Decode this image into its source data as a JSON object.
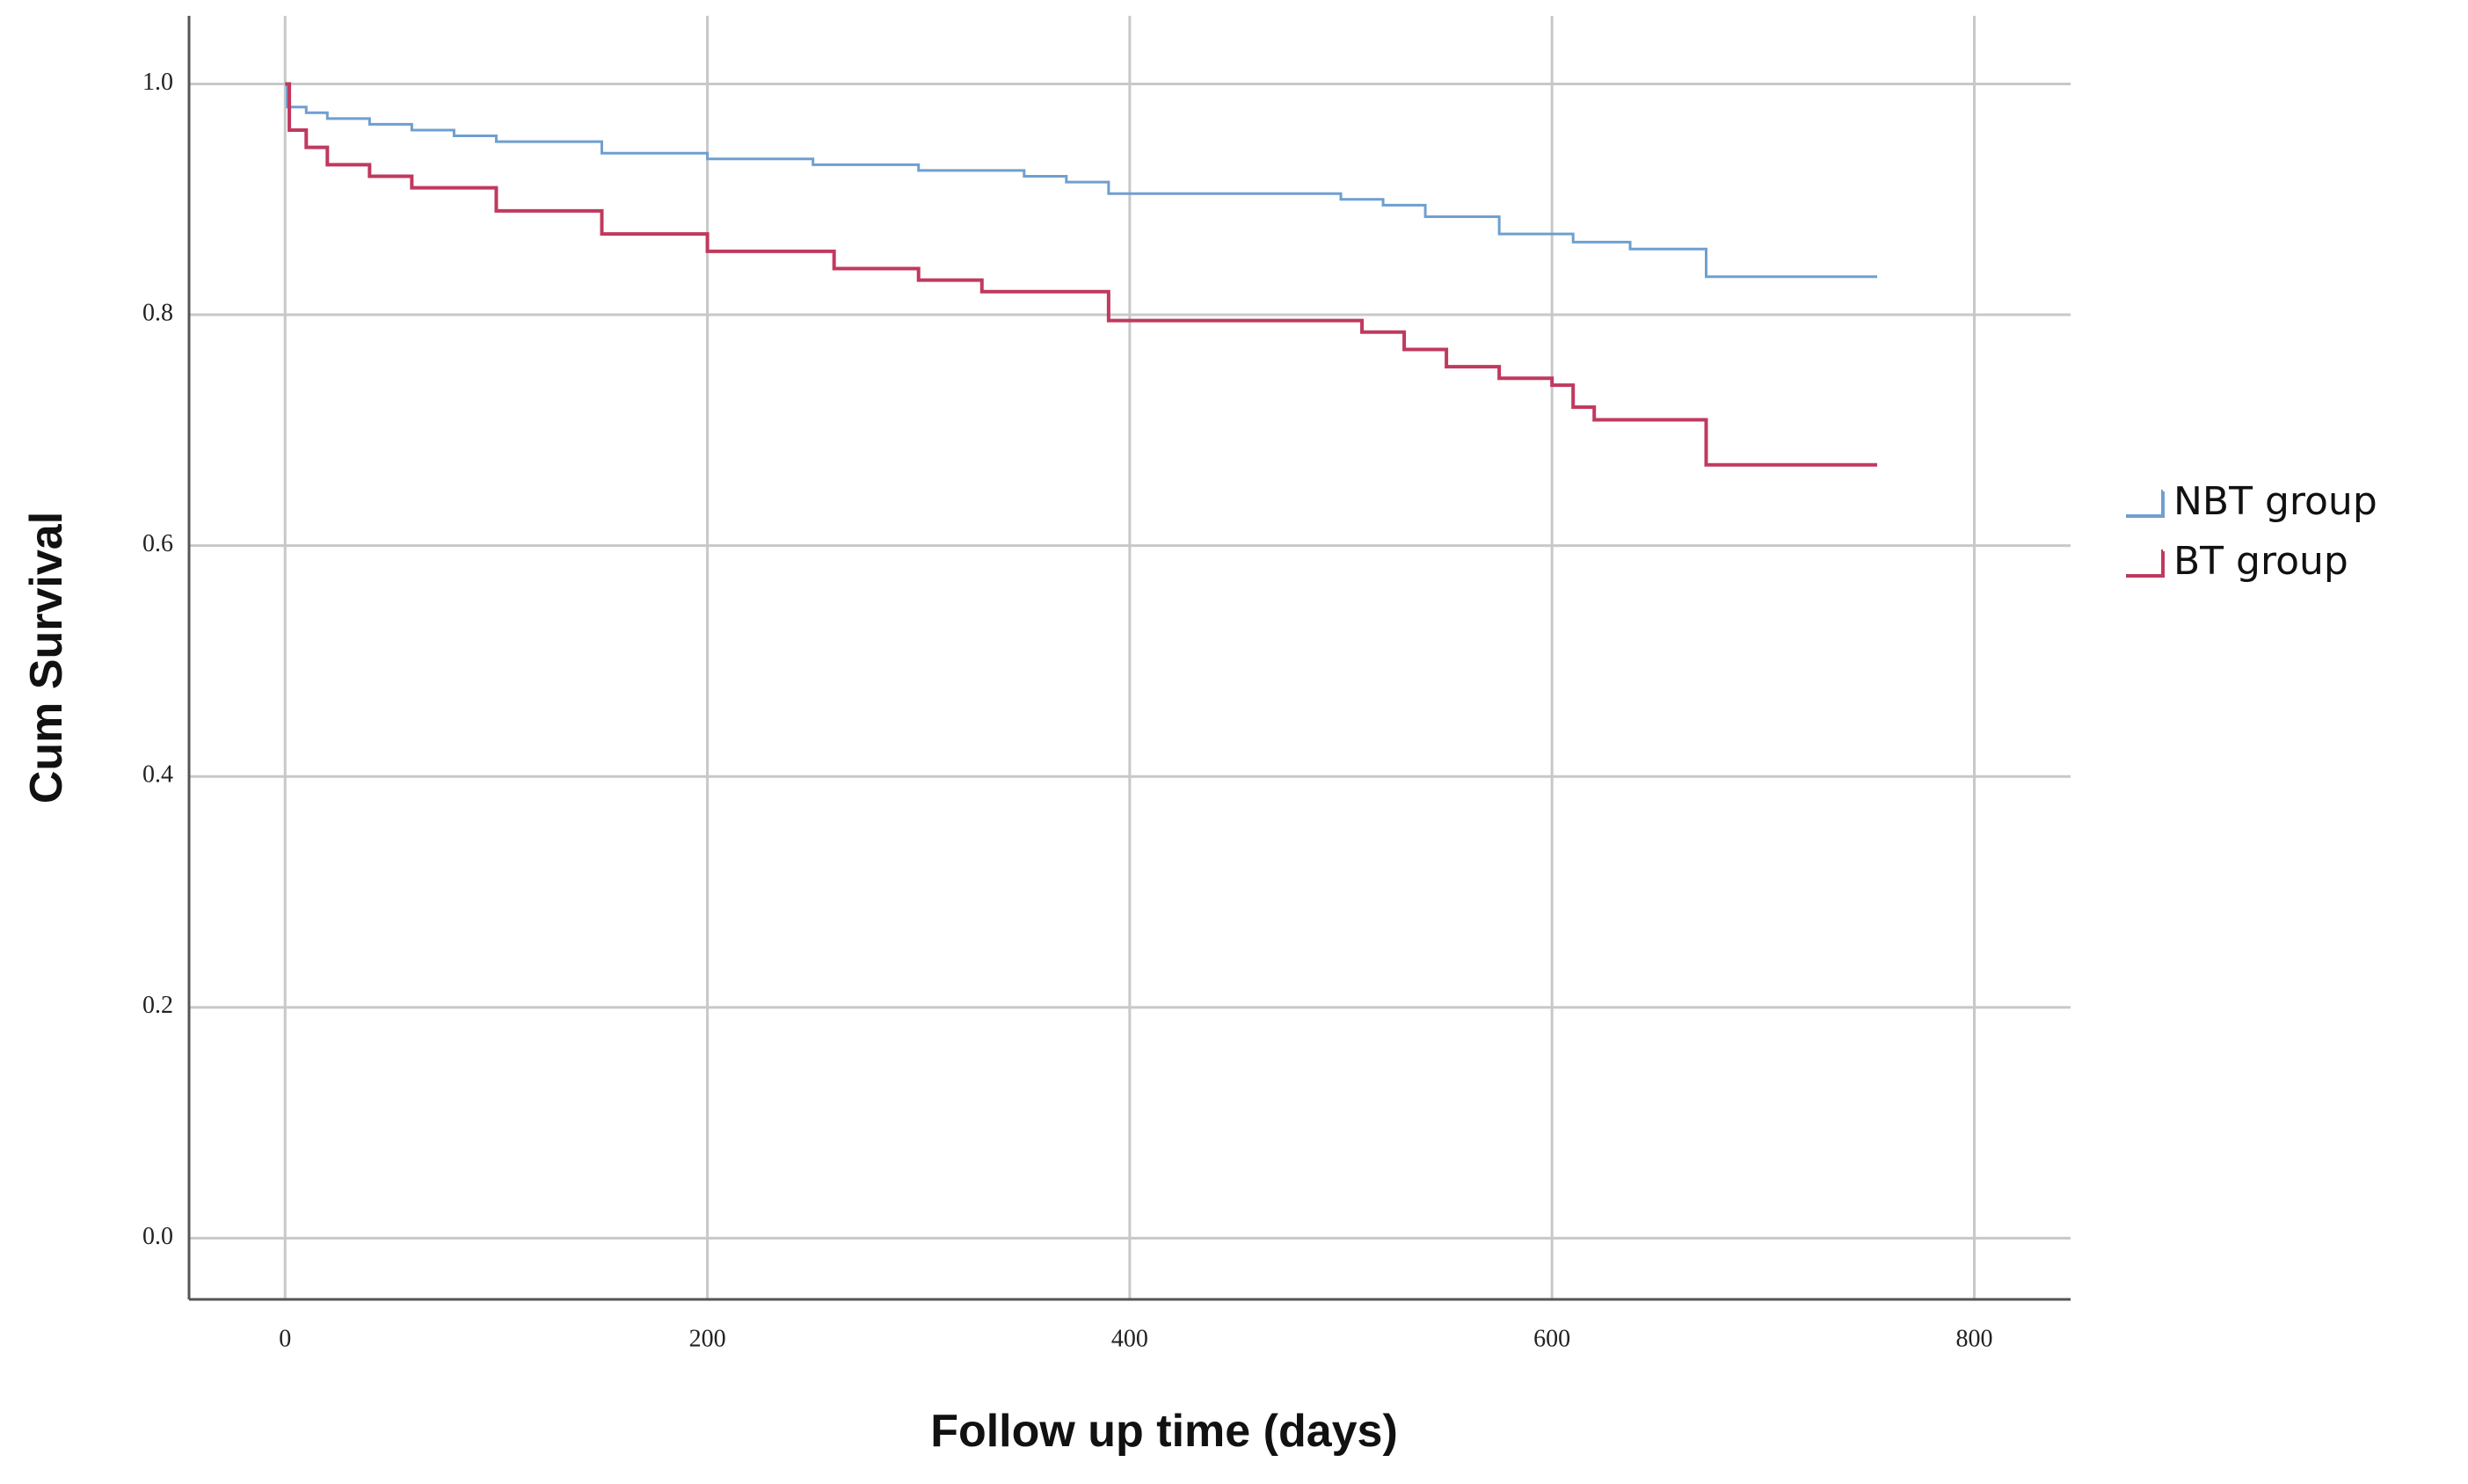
{
  "chart_data": {
    "type": "step",
    "x_label": "Follow up time (days)",
    "y_label": "Cum Survival",
    "xlim": [
      -45.5,
      845.6
    ],
    "ylim": [
      -0.053,
      1.059
    ],
    "xticks": [
      0,
      200,
      400,
      600,
      800
    ],
    "yticks": [
      {
        "value": 0,
        "label": "0.0"
      },
      0.2,
      0.4,
      0.6,
      0.8,
      {
        "value": 1,
        "label": "1.0"
      }
    ],
    "grid": true,
    "legend": "right",
    "series": [
      {
        "name": "NBT group",
        "color": "#6f9fd0",
        "x": [
          0,
          1,
          10,
          20,
          40,
          60,
          80,
          100,
          150,
          200,
          250,
          300,
          350,
          370,
          390,
          480,
          500,
          520,
          540,
          575,
          610,
          637,
          673,
          754
        ],
        "values": [
          1.0,
          0.98,
          0.975,
          0.97,
          0.965,
          0.96,
          0.955,
          0.95,
          0.94,
          0.935,
          0.93,
          0.925,
          0.92,
          0.915,
          0.905,
          0.905,
          0.9,
          0.895,
          0.885,
          0.87,
          0.863,
          0.857,
          0.833,
          0.833
        ]
      },
      {
        "name": "BT group",
        "color": "#c0395e",
        "x": [
          0,
          2,
          10,
          20,
          40,
          60,
          100,
          150,
          200,
          260,
          300,
          330,
          390,
          490,
          510,
          530,
          550,
          575,
          600,
          610,
          620,
          673,
          754
        ],
        "values": [
          1.0,
          0.96,
          0.945,
          0.93,
          0.92,
          0.91,
          0.89,
          0.87,
          0.855,
          0.84,
          0.83,
          0.82,
          0.795,
          0.795,
          0.785,
          0.77,
          0.755,
          0.745,
          0.739,
          0.72,
          0.709,
          0.67,
          0.67
        ]
      }
    ]
  }
}
